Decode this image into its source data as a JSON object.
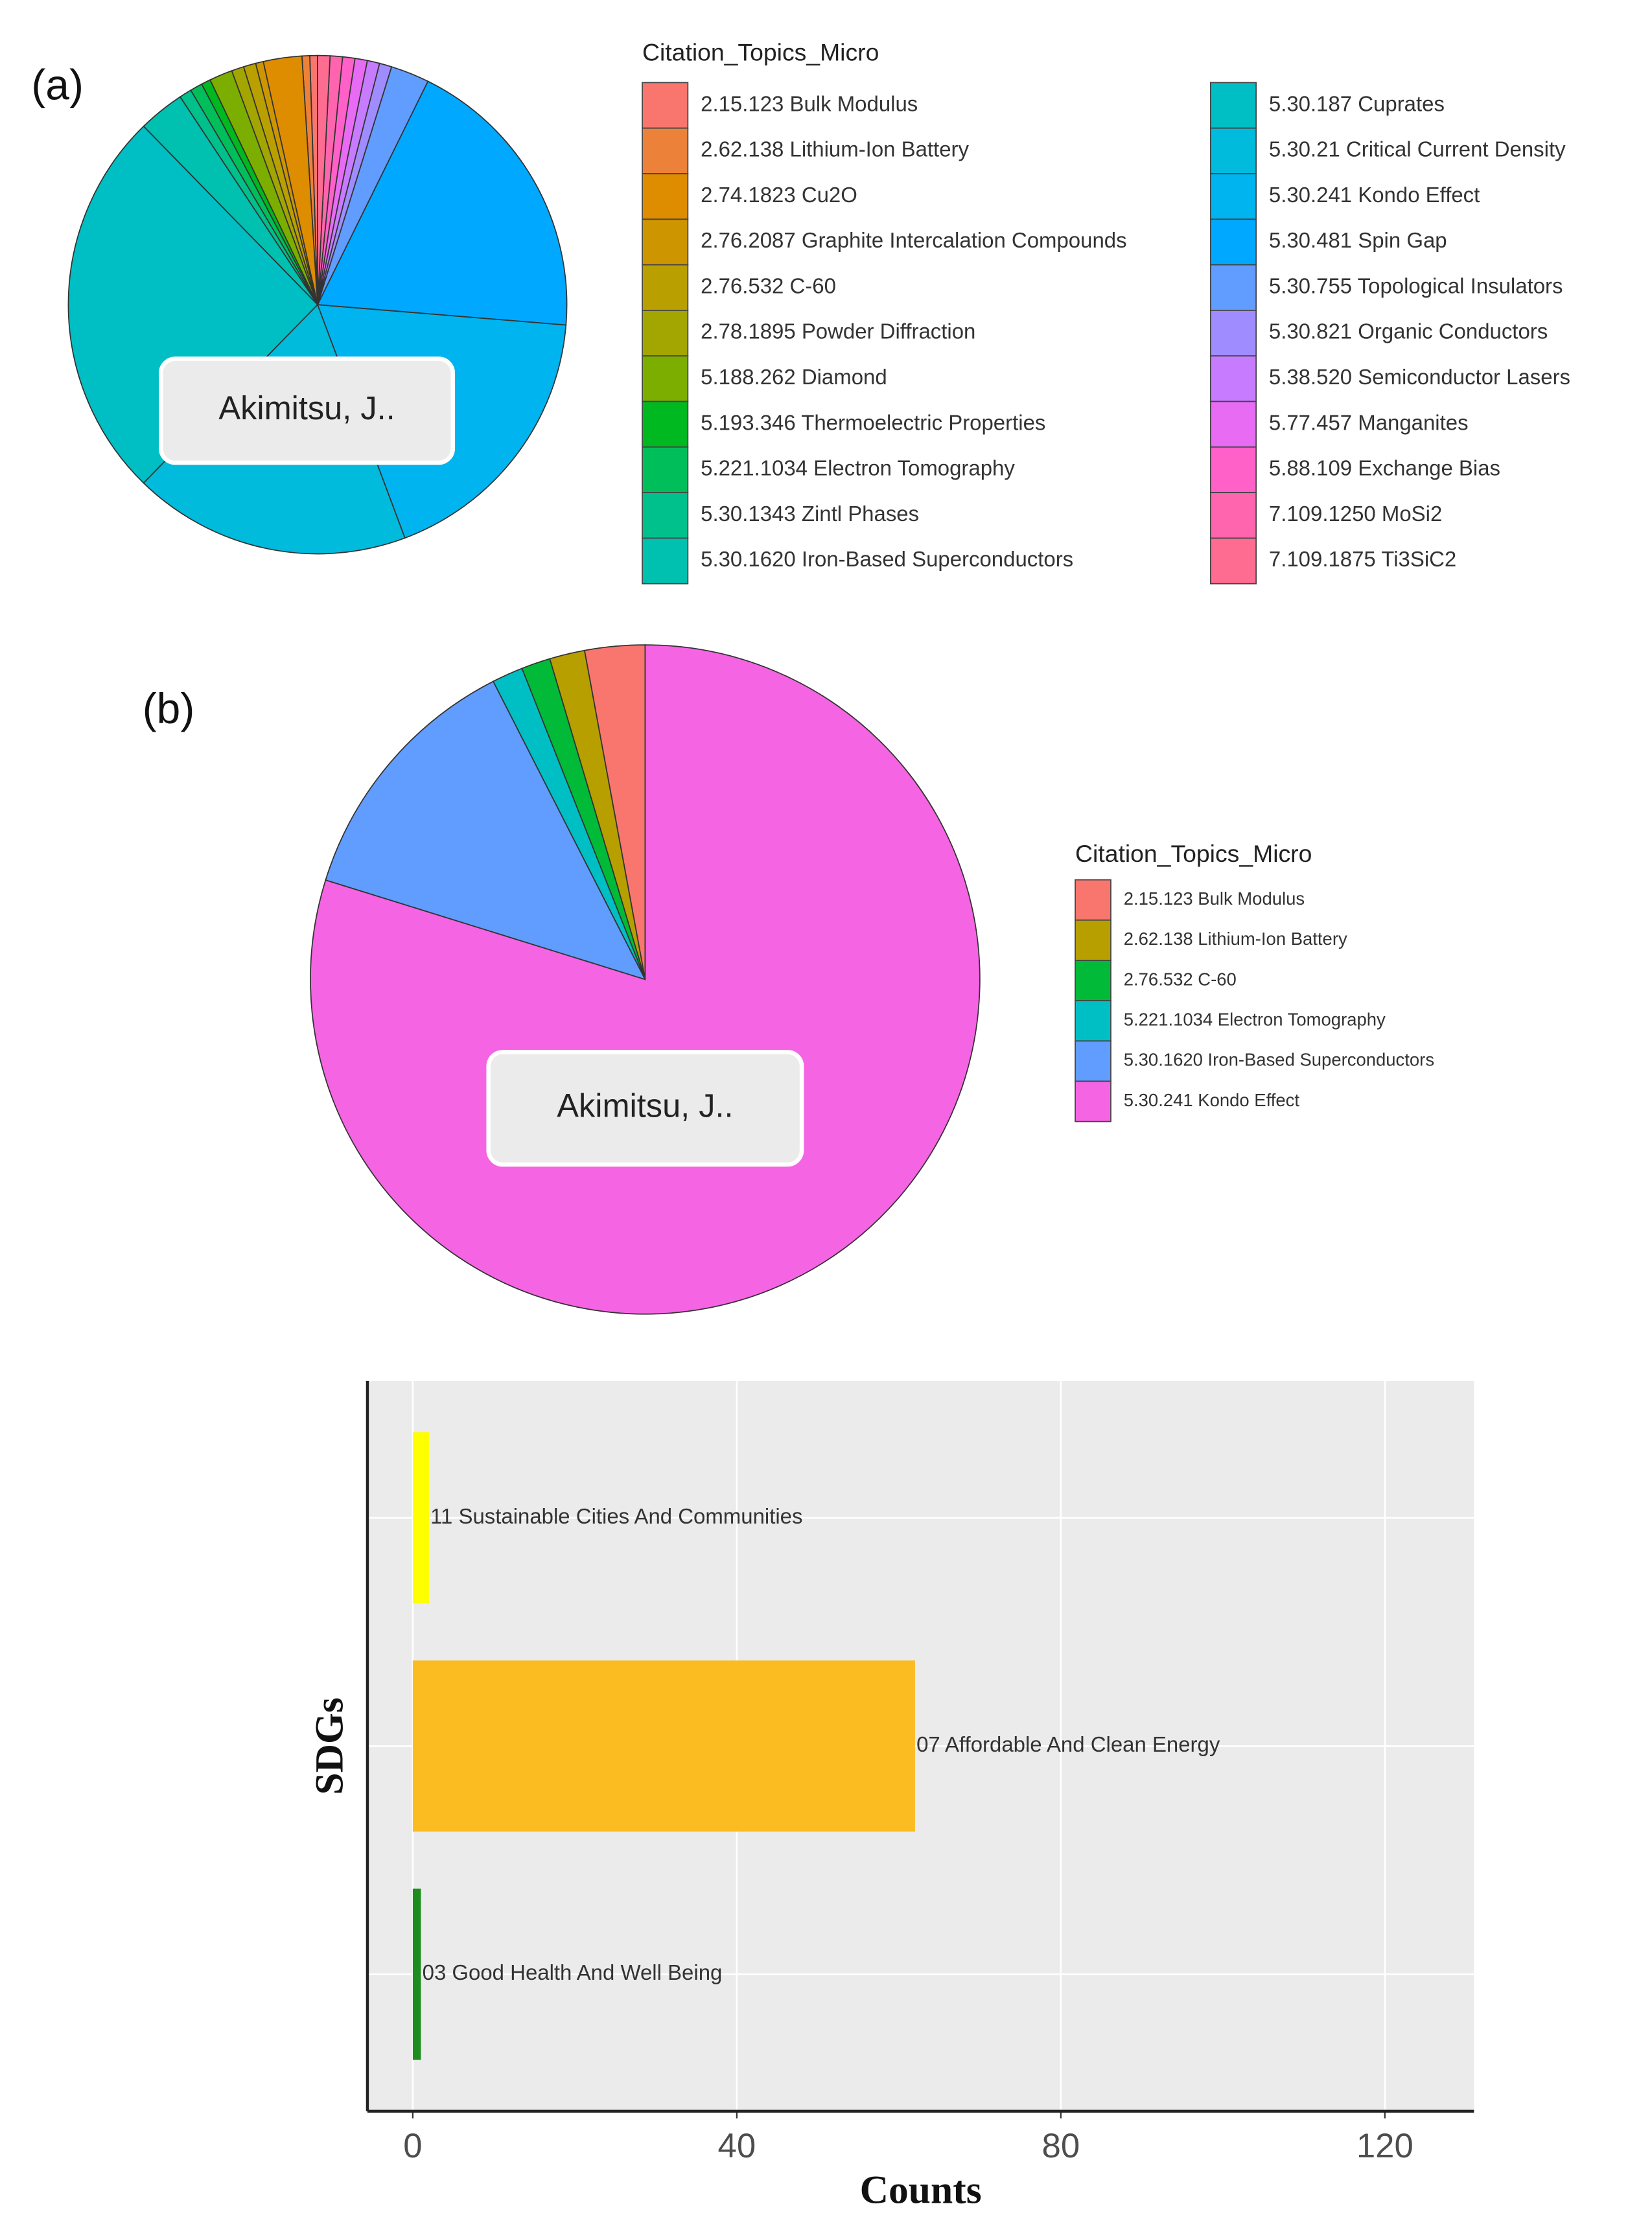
{
  "chart_data": [
    {
      "type": "pie",
      "panel_label": "(a)",
      "label": "Akimitsu, J..",
      "legend_title": "Citation_Topics_Micro",
      "categories": [
        "2.15.123 Bulk Modulus",
        "2.62.138 Lithium-Ion Battery",
        "2.74.1823 Cu2O",
        "2.76.2087 Graphite Intercalation Compounds",
        "2.76.532 C-60",
        "2.78.1895 Powder Diffraction",
        "5.188.262 Diamond",
        "5.193.346 Thermoelectric Properties",
        "5.221.1034 Electron Tomography",
        "5.30.1343 Zintl Phases",
        "5.30.1620 Iron-Based Superconductors",
        "5.30.187 Cuprates",
        "5.30.21 Critical Current Density",
        "5.30.241 Kondo Effect",
        "5.30.481 Spin Gap",
        "5.30.755 Topological Insulators",
        "5.30.821 Organic Conductors",
        "5.38.520 Semiconductor Lasers",
        "5.77.457 Manganites",
        "5.88.109 Exchange Bias",
        "7.109.1250 MoSi2",
        "7.109.1875 Ti3SiC2"
      ],
      "values": [
        0.5,
        0.5,
        2.5,
        0.5,
        0.8,
        0.8,
        1.5,
        0.6,
        0.8,
        0.8,
        3,
        25.4,
        18,
        18,
        19,
        2.5,
        0.8,
        0.8,
        0.8,
        0.8,
        0.8,
        0.8
      ],
      "colors": [
        "#F8766D",
        "#EC8239",
        "#DE8C00",
        "#CD9600",
        "#B9A000",
        "#A3A500",
        "#7CAE00",
        "#00B81F",
        "#00BF5A",
        "#00C08B",
        "#00C0AF",
        "#00BFC4",
        "#00BBDB",
        "#00B4EF",
        "#00A9FF",
        "#619CFF",
        "#9F8CFF",
        "#C77CFF",
        "#E76BF3",
        "#FF61C9",
        "#FF65AE",
        "#FF6C91"
      ]
    },
    {
      "type": "pie",
      "panel_label": "(b)",
      "label": "Akimitsu, J..",
      "legend_title": "Citation_Topics_Micro",
      "categories": [
        "2.15.123 Bulk Modulus",
        "2.62.138 Lithium-Ion Battery",
        "2.76.532 C-60",
        "5.221.1034 Electron Tomography",
        "5.30.1620 Iron-Based Superconductors",
        "5.30.241 Kondo Effect"
      ],
      "values": [
        2.9,
        1.7,
        1.4,
        1.5,
        12.7,
        79.8
      ],
      "colors": [
        "#F8766D",
        "#B79F00",
        "#00BA38",
        "#00BFC4",
        "#619CFF",
        "#F564E3"
      ]
    },
    {
      "type": "bar",
      "orientation": "horizontal",
      "categories": [
        "03 Good Health And Well Being",
        "07 Affordable And Clean Energy",
        "11 Sustainable Cities And Communities"
      ],
      "values": [
        1,
        62,
        2
      ],
      "colors": [
        "#1E8C1E",
        "#FBBC22",
        "#FFFF00"
      ],
      "xlabel": "Counts",
      "ylabel": "SDGs",
      "xlim": [
        -5.6,
        131
      ],
      "xticks": [
        0,
        40,
        80,
        120
      ],
      "grid": true
    }
  ]
}
